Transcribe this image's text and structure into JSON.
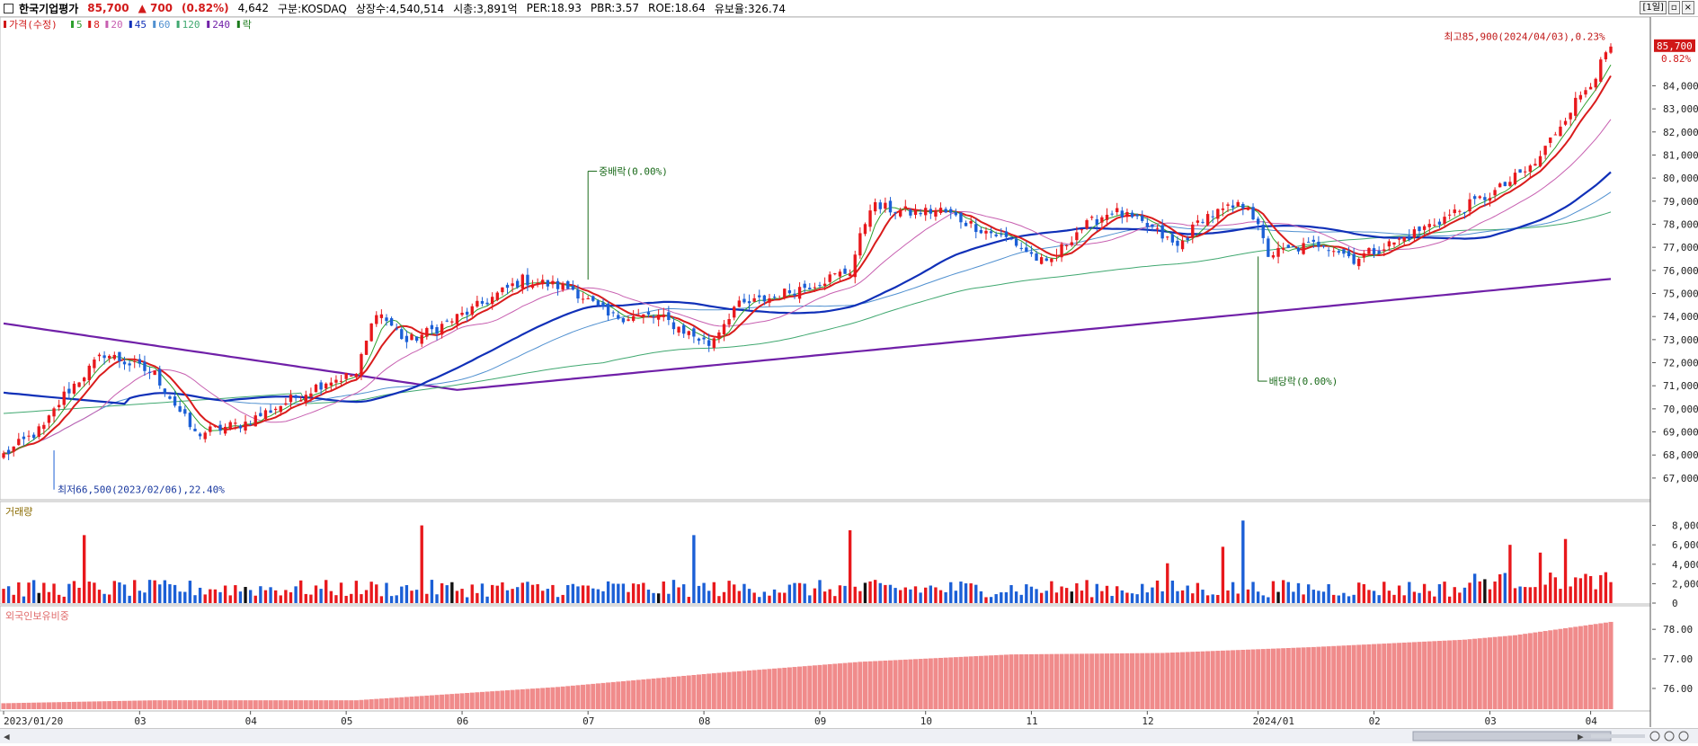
{
  "header": {
    "stock_name": "한국기업평가",
    "price": "85,700",
    "change": "▲ 700",
    "change_pct": "(0.82%)",
    "volume": "4,642",
    "market": "구분:KOSDAQ",
    "shares": "상장수:4,540,514",
    "market_cap": "시총:3,891억",
    "per": "PER:18.93",
    "pbr": "PBR:3.57",
    "roe": "ROE:18.64",
    "float_ratio": "유보율:326.74",
    "period_button": "[1일]"
  },
  "colors": {
    "up": "#e8181c",
    "down": "#1b5fd6",
    "ma5": "#2ea02e",
    "ma8": "#d91c1c",
    "ma20": "#c75fb0",
    "ma45": "#1030b8",
    "ma60": "#5090d0",
    "ma120": "#40a870",
    "ma240": "#7020a8",
    "foreign": "#f08b8b",
    "price_tag": "#d01818"
  },
  "chart_data": {
    "type": "candlestick",
    "price_legend": [
      {
        "label": "가격(수정)",
        "color": "#d01818"
      },
      {
        "label": "5",
        "color": "#2ea02e"
      },
      {
        "label": "8",
        "color": "#d91c1c"
      },
      {
        "label": "20",
        "color": "#c75fb0"
      },
      {
        "label": "45",
        "color": "#1030b8"
      },
      {
        "label": "60",
        "color": "#5090d0"
      },
      {
        "label": "120",
        "color": "#40a870"
      },
      {
        "label": "240",
        "color": "#7020a8"
      },
      {
        "label": "락",
        "color": "#1a7a1a"
      }
    ],
    "price_axis": {
      "ticks": [
        67000,
        68000,
        69000,
        70000,
        71000,
        72000,
        73000,
        74000,
        75000,
        76000,
        77000,
        78000,
        79000,
        80000,
        81000,
        82000,
        83000,
        84000
      ],
      "labels": [
        "67,000",
        "68,000",
        "69,000",
        "70,000",
        "71,000",
        "72,000",
        "73,000",
        "74,000",
        "75,000",
        "76,000",
        "77,000",
        "78,000",
        "79,000",
        "80,000",
        "81,000",
        "82,000",
        "83,000",
        "84,000"
      ],
      "range": [
        66100,
        86900
      ]
    },
    "last_price_tag": {
      "price": "85,700",
      "pct": "0.82%"
    },
    "x_labels": [
      "2023/01/20",
      "03",
      "04",
      "05",
      "06",
      "07",
      "08",
      "09",
      "10",
      "11",
      "12",
      "2024/01",
      "02",
      "03",
      "04"
    ],
    "x_label_days": [
      0,
      27,
      49,
      68,
      91,
      116,
      139,
      162,
      183,
      204,
      227,
      249,
      272,
      295,
      315
    ],
    "num_days": 320,
    "anchors": [
      [
        0,
        68000
      ],
      [
        8,
        69200
      ],
      [
        12,
        70600
      ],
      [
        20,
        72400
      ],
      [
        30,
        71500
      ],
      [
        38,
        68900
      ],
      [
        48,
        69400
      ],
      [
        58,
        70500
      ],
      [
        64,
        71200
      ],
      [
        70,
        71500
      ],
      [
        74,
        74300
      ],
      [
        80,
        72900
      ],
      [
        86,
        73500
      ],
      [
        93,
        74300
      ],
      [
        103,
        75600
      ],
      [
        113,
        75200
      ],
      [
        120,
        74000
      ],
      [
        130,
        74000
      ],
      [
        140,
        72800
      ],
      [
        145,
        74400
      ],
      [
        152,
        74800
      ],
      [
        159,
        75300
      ],
      [
        168,
        76000
      ],
      [
        172,
        78800
      ],
      [
        180,
        78500
      ],
      [
        186,
        78600
      ],
      [
        194,
        77800
      ],
      [
        200,
        77300
      ],
      [
        207,
        76200
      ],
      [
        213,
        77700
      ],
      [
        220,
        78600
      ],
      [
        228,
        77800
      ],
      [
        233,
        77000
      ],
      [
        238,
        78300
      ],
      [
        247,
        78900
      ],
      [
        251,
        76700
      ],
      [
        262,
        77200
      ],
      [
        268,
        76500
      ],
      [
        277,
        77300
      ],
      [
        288,
        78500
      ],
      [
        296,
        79400
      ],
      [
        304,
        80600
      ],
      [
        310,
        82700
      ],
      [
        316,
        84500
      ],
      [
        319,
        85700
      ]
    ],
    "annotations": [
      {
        "text": "최저66,500(2023/02/06),22.40%",
        "day": 10,
        "price": 66500
      },
      {
        "text": "최고85,900(2024/04/03),0.23%",
        "day": 318,
        "price": 85900
      },
      {
        "text": "중배락(0.00%)",
        "day": 116,
        "price": 80300
      },
      {
        "text": "배당락(0.00%)",
        "day": 249,
        "price": 71200
      }
    ],
    "volume": {
      "title": "거래량",
      "ticks": [
        0,
        2000,
        4000,
        6000,
        8000
      ],
      "labels": [
        "0",
        "2,000",
        "4,000",
        "6,000",
        "8,000"
      ],
      "max": 8700,
      "spikes": [
        [
          16,
          7000
        ],
        [
          83,
          8000
        ],
        [
          137,
          7000
        ],
        [
          168,
          7500
        ],
        [
          246,
          8500
        ],
        [
          242,
          5800
        ],
        [
          231,
          4100
        ],
        [
          310,
          6600
        ],
        [
          305,
          5200
        ],
        [
          299,
          6000
        ]
      ]
    },
    "foreign_ownership": {
      "title": "외국인보유비중",
      "ticks": [
        76.0,
        77.0,
        78.0
      ],
      "labels": [
        "76.00",
        "77.00",
        "78.00"
      ],
      "range": [
        75.3,
        78.4
      ],
      "anchors": [
        [
          0,
          75.5
        ],
        [
          30,
          75.6
        ],
        [
          70,
          75.6
        ],
        [
          110,
          76.05
        ],
        [
          140,
          76.5
        ],
        [
          170,
          76.9
        ],
        [
          200,
          77.15
        ],
        [
          230,
          77.2
        ],
        [
          260,
          77.4
        ],
        [
          290,
          77.65
        ],
        [
          300,
          77.8
        ],
        [
          319,
          78.25
        ]
      ]
    }
  }
}
